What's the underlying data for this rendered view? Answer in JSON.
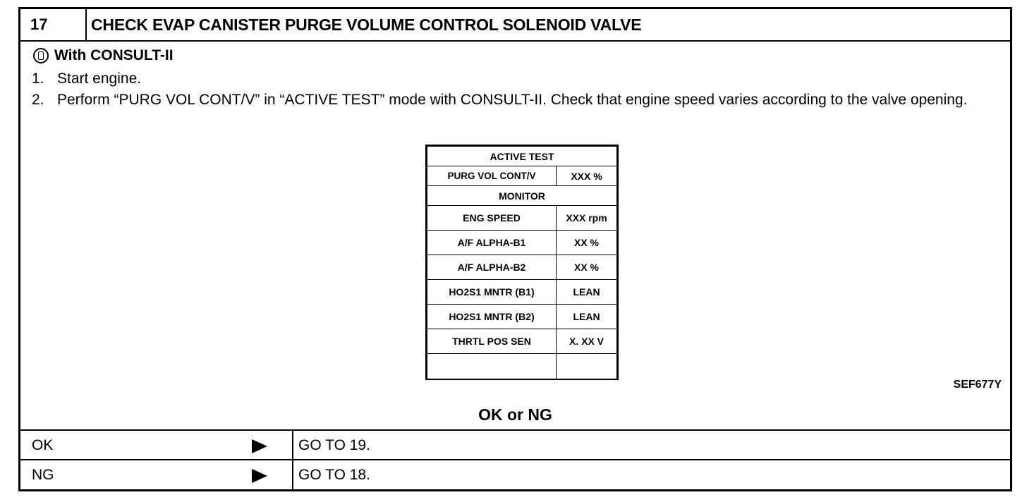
{
  "step": {
    "number": "17",
    "title": "CHECK EVAP CANISTER PURGE VOLUME CONTROL SOLENOID VALVE"
  },
  "procedure": {
    "heading": "With CONSULT-II",
    "heading_icon": "consult-tool-icon",
    "steps": [
      {
        "num": "1.",
        "text": "Start engine."
      },
      {
        "num": "2.",
        "text": "Perform “PURG VOL CONT/V” in “ACTIVE TEST” mode with CONSULT-II. Check that engine speed varies according to the valve opening."
      }
    ]
  },
  "screen": {
    "active_test_title": "ACTIVE TEST",
    "test_item": {
      "label": "PURG VOL CONT/V",
      "value": "XXX %"
    },
    "monitor_title": "MONITOR",
    "monitor_rows": [
      {
        "label": "ENG SPEED",
        "value": "XXX rpm"
      },
      {
        "label": "A/F ALPHA-B1",
        "value": "XX %"
      },
      {
        "label": "A/F ALPHA-B2",
        "value": "XX %"
      },
      {
        "label": "HO2S1 MNTR (B1)",
        "value": "LEAN"
      },
      {
        "label": "HO2S1 MNTR (B2)",
        "value": "LEAN"
      },
      {
        "label": "THRTL POS SEN",
        "value": "X. XX V"
      }
    ]
  },
  "figure_ref": "SEF677Y",
  "okng_label": "OK or NG",
  "results": [
    {
      "label": "OK",
      "action": "GO TO 19."
    },
    {
      "label": "NG",
      "action": "GO TO 18."
    }
  ]
}
